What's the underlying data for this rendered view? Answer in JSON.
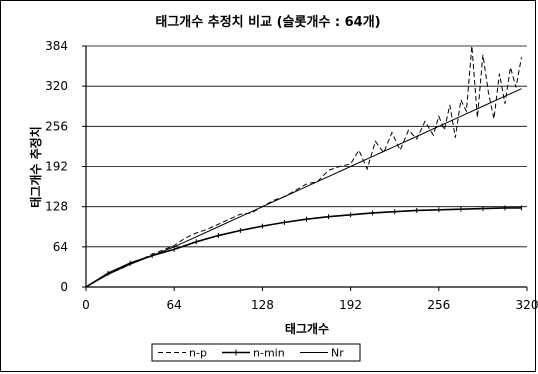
{
  "chart_data": {
    "type": "line",
    "title": "태그개수 추정치 비교 (슬롯개수 : 64개)",
    "xlabel": "태그개수",
    "ylabel": "태그개수 추정치",
    "xlim": [
      0,
      320
    ],
    "ylim": [
      0,
      384
    ],
    "x_ticks": [
      0,
      64,
      128,
      192,
      256,
      320
    ],
    "y_ticks": [
      0,
      64,
      128,
      192,
      256,
      320,
      384
    ],
    "grid": "horizontal",
    "legend_position": "bottom",
    "series": [
      {
        "name": "n-p",
        "style": "dashed",
        "x": [
          0,
          16,
          32,
          48,
          64,
          72,
          80,
          88,
          96,
          104,
          112,
          120,
          128,
          136,
          144,
          152,
          160,
          168,
          176,
          184,
          192,
          198,
          204,
          210,
          216,
          222,
          228,
          234,
          240,
          246,
          252,
          256,
          260,
          264,
          268,
          272,
          276,
          280,
          284,
          288,
          292,
          296,
          300,
          304,
          308,
          312,
          316
        ],
        "y": [
          0,
          20,
          36,
          52,
          66,
          78,
          86,
          92,
          100,
          108,
          116,
          118,
          128,
          138,
          144,
          154,
          164,
          168,
          186,
          192,
          196,
          218,
          188,
          232,
          214,
          246,
          218,
          250,
          236,
          264,
          242,
          272,
          250,
          290,
          238,
          298,
          280,
          384,
          270,
          370,
          310,
          268,
          340,
          292,
          350,
          318,
          366
        ]
      },
      {
        "name": "n-min",
        "style": "line-with-markers",
        "x": [
          0,
          16,
          32,
          48,
          64,
          80,
          96,
          112,
          128,
          144,
          160,
          176,
          192,
          208,
          224,
          240,
          256,
          272,
          288,
          304,
          316
        ],
        "y": [
          0,
          22,
          38,
          50,
          60,
          72,
          82,
          90,
          97,
          103,
          108,
          112,
          115,
          118,
          120,
          122,
          123,
          124,
          125,
          126,
          126
        ]
      },
      {
        "name": "Nr",
        "style": "solid",
        "x": [
          0,
          16,
          32,
          48,
          64,
          80,
          96,
          112,
          128,
          144,
          160,
          176,
          192,
          208,
          224,
          240,
          256,
          272,
          288,
          304,
          316
        ],
        "y": [
          0,
          20,
          36,
          50,
          64,
          80,
          96,
          112,
          128,
          144,
          160,
          176,
          192,
          208,
          224,
          240,
          256,
          272,
          288,
          304,
          316
        ]
      }
    ]
  }
}
